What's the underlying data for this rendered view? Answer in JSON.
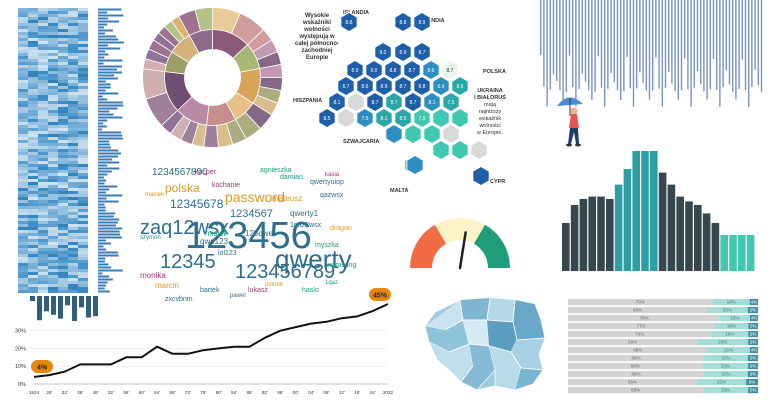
{
  "hexmap": {
    "annotation": [
      "Wysokie",
      "wskaźniki",
      "wolności",
      "występują w",
      "całej północno-",
      "zachodniej",
      "Europie"
    ],
    "labels": {
      "islandia": "ISLANDIA",
      "finlandia": "FINLANDIA",
      "polska": "POLSKA",
      "hiszpania": "HISZPANIA",
      "szwajcaria": "SZWAJCARIA",
      "malta": "MALTA",
      "cypr": "CYPR"
    },
    "ukraine_note": [
      "UKRAINA",
      "I BIAŁORUŚ",
      "mają",
      "najniższy",
      "wskaźnik",
      "wolności",
      "w Europie."
    ],
    "cell_values": [
      "8.8",
      "8.8",
      "8.9",
      "9.0",
      "8.9",
      "8.7",
      "8.9",
      "9.0",
      "8.8",
      "8.7",
      "8.6",
      "8.7",
      "6.7",
      "8.6",
      "8.9",
      "8.7",
      "8.8",
      "6.9",
      "8.6",
      "8.1",
      "8.7",
      "8.7",
      "8.7",
      "8.1",
      "7.5",
      "8.5",
      "7.5",
      "8.1",
      "8.5",
      "7.5"
    ]
  },
  "gauge": {
    "colors": [
      "#f26b43",
      "#fdf3c8",
      "#1f9c7a"
    ],
    "needle_fraction": 0.55
  },
  "bar_histogram": {
    "dark_color": "#37474f",
    "highlight_color": "#2c9fa3",
    "light_color": "#3ec9b0",
    "values": [
      40,
      55,
      60,
      62,
      62,
      60,
      72,
      85,
      100,
      100,
      100,
      82,
      72,
      62,
      58,
      55,
      48,
      40,
      30,
      30,
      30,
      30
    ]
  },
  "passwords": {
    "words": [
      {
        "text": "123456",
        "size": 38,
        "color": "#2f6e8e"
      },
      {
        "text": "qwerty",
        "size": 26,
        "color": "#2f6e8e"
      },
      {
        "text": "123456789",
        "size": 20,
        "color": "#2f6e8e"
      },
      {
        "text": "12345",
        "size": 20,
        "color": "#2f6e8e"
      },
      {
        "text": "zaq12wsx",
        "size": 20,
        "color": "#2f6e8e"
      },
      {
        "text": "password",
        "size": 14,
        "color": "#d99a2b"
      },
      {
        "text": "polska",
        "size": 12,
        "color": "#d99a2b"
      },
      {
        "text": "12345678",
        "size": 12,
        "color": "#2f6e8e"
      },
      {
        "text": "1234567",
        "size": 11,
        "color": "#2f6e8e"
      },
      {
        "text": "1234567890",
        "size": 10,
        "color": "#2f6e8e"
      },
      {
        "text": "marcin",
        "size": 8,
        "color": "#d99a2b"
      },
      {
        "text": "monika",
        "size": 8,
        "color": "#9c3b76"
      },
      {
        "text": "qwerty1",
        "size": 8,
        "color": "#2f6e8e"
      },
      {
        "text": "qwertyuiop",
        "size": 7,
        "color": "#2f6e8e"
      },
      {
        "text": "123qwe",
        "size": 8,
        "color": "#2f6e8e"
      },
      {
        "text": "mateusz",
        "size": 8,
        "color": "#d99a2b"
      },
      {
        "text": "misiek",
        "size": 8,
        "color": "#1f9c7a"
      },
      {
        "text": "qwe123",
        "size": 8,
        "color": "#2f6e8e"
      },
      {
        "text": "kacper",
        "size": 7,
        "color": "#9c3b76"
      },
      {
        "text": "damian",
        "size": 7,
        "color": "#1f9c7a"
      },
      {
        "text": "lol123",
        "size": 7,
        "color": "#2f6e8e"
      },
      {
        "text": "qazwsx",
        "size": 7,
        "color": "#2f6e8e"
      },
      {
        "text": "agnieszka",
        "size": 7,
        "color": "#1f9c7a"
      },
      {
        "text": "zxcvbnm",
        "size": 7,
        "color": "#2f6e8e"
      },
      {
        "text": "lukasz",
        "size": 7,
        "color": "#9c3b76"
      },
      {
        "text": "myszka",
        "size": 7,
        "color": "#1f9c7a"
      },
      {
        "text": "dragon",
        "size": 7,
        "color": "#d99a2b"
      },
      {
        "text": "haslo",
        "size": 7,
        "color": "#1f9c7a"
      },
      {
        "text": "kochanie",
        "size": 7,
        "color": "#9c3b76"
      },
      {
        "text": "bartek",
        "size": 7,
        "color": "#2f6e8e"
      },
      {
        "text": "1qaz2wsx",
        "size": 7,
        "color": "#2f6e8e"
      },
      {
        "text": "samsung",
        "size": 7,
        "color": "#1f9c7a"
      },
      {
        "text": "maciek",
        "size": 6,
        "color": "#d99a2b"
      },
      {
        "text": "kasia",
        "size": 6,
        "color": "#9c3b76"
      },
      {
        "text": "szymon",
        "size": 6,
        "color": "#1f9c7a"
      },
      {
        "text": "pawel",
        "size": 6,
        "color": "#2f6e8e"
      },
      {
        "text": "piotrek",
        "size": 6,
        "color": "#d99a2b"
      },
      {
        "text": "1qaz",
        "size": 6,
        "color": "#1f9c7a"
      }
    ]
  },
  "line_chart": {
    "color": "#111111",
    "y_ticks": [
      "0%",
      "10%",
      "20%",
      "30%"
    ],
    "x_ticks": [
      "1924",
      "28'",
      "32'",
      "36'",
      "48'",
      "52'",
      "56'",
      "60'",
      "64'",
      "68'",
      "72'",
      "76'",
      "80'",
      "84'",
      "88'",
      "92'",
      "96'",
      "00'",
      "04'",
      "08'",
      "12'",
      "16'",
      "18'",
      "2022"
    ],
    "start_badge": "4%",
    "end_badge": "45%",
    "badge_color": "#e8870e",
    "values": [
      4,
      5,
      7,
      11,
      11,
      11,
      15,
      15,
      21,
      17,
      17,
      19,
      20,
      21,
      21,
      26,
      30,
      32,
      34,
      35,
      37,
      38,
      41,
      45
    ]
  },
  "stacked_bars": {
    "colors": [
      "#d3d3d3",
      "#a6dcd7",
      "#3f8ea8"
    ],
    "rows": [
      {
        "a": "70%",
        "b": "18%",
        "c": "4%"
      },
      {
        "a": "68%",
        "b": "20%",
        "c": "5%"
      },
      {
        "a": "76%",
        "b": "15%",
        "c": "4%"
      },
      {
        "a": "77%",
        "b": "18%",
        "c": "5%"
      },
      {
        "a": "74%",
        "b": "19%",
        "c": "5%"
      },
      {
        "a": "66%",
        "b": "26%",
        "c": "5%"
      },
      {
        "a": "69%",
        "b": "21%",
        "c": "4%"
      },
      {
        "a": "68%",
        "b": "22%",
        "c": "5%"
      },
      {
        "a": "68%",
        "b": "23%",
        "c": "5%"
      },
      {
        "a": "68%",
        "b": "22%",
        "c": "5%"
      },
      {
        "a": "65%",
        "b": "25%",
        "c": "6%"
      },
      {
        "a": "69%",
        "b": "23%",
        "c": "5%"
      }
    ]
  }
}
